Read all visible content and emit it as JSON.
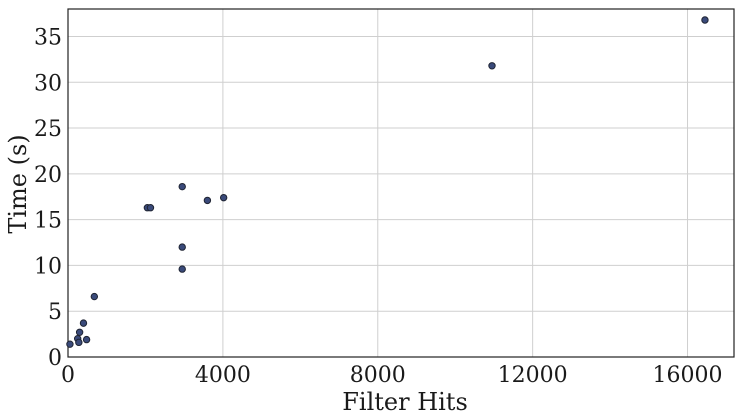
{
  "chart_data": {
    "type": "scatter",
    "title": "",
    "xlabel": "Filter Hits",
    "ylabel": "Time  (s)",
    "xlim": [
      0,
      17200
    ],
    "ylim": [
      0,
      38
    ],
    "xticks": [
      0,
      4000,
      8000,
      12000,
      16000
    ],
    "yticks": [
      0,
      5,
      10,
      15,
      20,
      25,
      30,
      35
    ],
    "grid": true,
    "marker_color": "#3a4a7a",
    "points": [
      {
        "x": 50,
        "y": 1.4
      },
      {
        "x": 250,
        "y": 2.0
      },
      {
        "x": 280,
        "y": 1.6
      },
      {
        "x": 300,
        "y": 2.7
      },
      {
        "x": 400,
        "y": 3.7
      },
      {
        "x": 480,
        "y": 1.9
      },
      {
        "x": 680,
        "y": 6.6
      },
      {
        "x": 2050,
        "y": 16.3
      },
      {
        "x": 2130,
        "y": 16.3
      },
      {
        "x": 2950,
        "y": 18.6
      },
      {
        "x": 2950,
        "y": 12.0
      },
      {
        "x": 2950,
        "y": 9.6
      },
      {
        "x": 3600,
        "y": 17.1
      },
      {
        "x": 4020,
        "y": 17.4
      },
      {
        "x": 10950,
        "y": 31.8
      },
      {
        "x": 16450,
        "y": 36.8
      }
    ]
  }
}
